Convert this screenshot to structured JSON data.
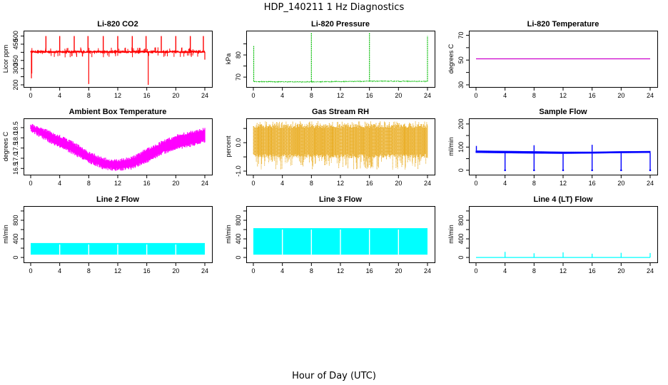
{
  "figure": {
    "title": "HDP_140211 1 Hz Diagnostics",
    "xlabel": "Hour of Day (UTC)"
  },
  "chart_data": [
    {
      "type": "line",
      "id": "co2",
      "title": "Li-820 CO2",
      "ylabel": "Licor ppm",
      "color": "#ff0000",
      "style": "noisy",
      "xlim": [
        0,
        24
      ],
      "xticks": [
        0,
        4,
        8,
        12,
        16,
        20,
        24
      ],
      "ylim": [
        200,
        520
      ],
      "yticks": [
        200,
        250,
        300,
        350,
        400,
        450,
        500
      ],
      "ytick_labels": [
        "200",
        "",
        "300",
        "350",
        "",
        "450",
        "500"
      ],
      "baseline": 403,
      "noise": 4,
      "dips": [
        {
          "x": 8.0,
          "y": 205
        },
        {
          "x": 16.2,
          "y": 200
        },
        {
          "x": 0.1,
          "y": 240
        },
        {
          "x": 0.15,
          "y": 270
        },
        {
          "x": 24.0,
          "y": 355
        }
      ],
      "peaks": [
        {
          "x": 2.1,
          "y": 500
        },
        {
          "x": 4.0,
          "y": 500
        },
        {
          "x": 6.0,
          "y": 500
        },
        {
          "x": 7.9,
          "y": 500
        },
        {
          "x": 10.0,
          "y": 500
        },
        {
          "x": 12.0,
          "y": 500
        },
        {
          "x": 14.0,
          "y": 500
        },
        {
          "x": 15.9,
          "y": 500
        },
        {
          "x": 18.0,
          "y": 500
        },
        {
          "x": 20.0,
          "y": 500
        },
        {
          "x": 22.0,
          "y": 500
        },
        {
          "x": 23.8,
          "y": 500
        }
      ],
      "spikes_y": [
        425,
        375
      ]
    },
    {
      "type": "line",
      "id": "pressure",
      "title": "Li-820 Pressure",
      "ylabel": "kPa",
      "color": "#00bb00",
      "style": "pressure",
      "xlim": [
        0,
        24
      ],
      "xticks": [
        0,
        4,
        8,
        12,
        16,
        20,
        24
      ],
      "ylim": [
        66.5,
        90
      ],
      "yticks": [
        70,
        75,
        80,
        85
      ],
      "ytick_labels": [
        "70",
        "",
        "80",
        ""
      ],
      "baseline": 68.0,
      "spikes": [
        {
          "x": 0.05,
          "y": 84
        },
        {
          "x": 8.0,
          "y": 90
        },
        {
          "x": 16.0,
          "y": 90
        },
        {
          "x": 24.0,
          "y": 88.5
        }
      ]
    },
    {
      "type": "line",
      "id": "temperature",
      "title": "Li-820 Temperature",
      "ylabel": "degrees C",
      "color": "#cc00cc",
      "style": "flat",
      "xlim": [
        0,
        24
      ],
      "xticks": [
        0,
        4,
        8,
        12,
        16,
        20,
        24
      ],
      "ylim": [
        30,
        72
      ],
      "yticks": [
        30,
        40,
        50,
        60,
        70
      ],
      "ytick_labels": [
        "30",
        "",
        "50",
        "",
        "70"
      ],
      "value": 51
    },
    {
      "type": "area",
      "id": "ambient",
      "title": "Ambient Box Temperature",
      "ylabel": "degrees C",
      "color": "#ff00ff",
      "style": "band",
      "xlim": [
        0,
        24
      ],
      "xticks": [
        0,
        4,
        8,
        12,
        16,
        20,
        24
      ],
      "ylim": [
        16.3,
        18.85
      ],
      "yticks": [
        16.5,
        17.0,
        17.5,
        18.0,
        18.5
      ],
      "ytick_labels": [
        "16.5",
        "17.0",
        "17.5",
        "18.0",
        "18.5"
      ],
      "upper": [
        [
          0,
          18.75
        ],
        [
          2,
          18.45
        ],
        [
          4,
          18.15
        ],
        [
          6,
          17.8
        ],
        [
          8,
          17.35
        ],
        [
          10,
          17.05
        ],
        [
          12,
          16.95
        ],
        [
          14,
          17.1
        ],
        [
          16,
          17.5
        ],
        [
          18,
          17.85
        ],
        [
          20,
          18.15
        ],
        [
          22,
          18.35
        ],
        [
          24,
          18.5
        ]
      ],
      "lower": [
        [
          0,
          18.3
        ],
        [
          2,
          17.85
        ],
        [
          4,
          17.5
        ],
        [
          6,
          17.15
        ],
        [
          8,
          16.75
        ],
        [
          10,
          16.45
        ],
        [
          12,
          16.35
        ],
        [
          14,
          16.45
        ],
        [
          16,
          16.75
        ],
        [
          18,
          17.15
        ],
        [
          20,
          17.4
        ],
        [
          22,
          17.55
        ],
        [
          24,
          17.75
        ]
      ]
    },
    {
      "type": "area",
      "id": "rh",
      "title": "Gas Stream RH",
      "ylabel": "percent",
      "color": "#e6a000",
      "style": "dense-band",
      "xlim": [
        0,
        24
      ],
      "xticks": [
        0,
        4,
        8,
        12,
        16,
        20,
        24
      ],
      "ylim": [
        -1.05,
        0.78
      ],
      "yticks": [
        -1.0,
        -0.5,
        0.0,
        0.5
      ],
      "ytick_labels": [
        "-1.0",
        "",
        "0.0",
        ""
      ],
      "band_top": 0.65,
      "band_bottom": -0.55,
      "low_extreme": -0.95,
      "high_extreme": 0.75
    },
    {
      "type": "line",
      "id": "sample",
      "title": "Sample Flow",
      "ylabel": "ml/min",
      "color": "#0000ff",
      "style": "flow",
      "xlim": [
        0,
        24
      ],
      "xticks": [
        0,
        4,
        8,
        12,
        16,
        20,
        24
      ],
      "ylim": [
        -10,
        215
      ],
      "yticks": [
        0,
        50,
        100,
        150,
        200
      ],
      "ytick_labels": [
        "0",
        "",
        "100",
        "",
        "200"
      ],
      "upper": [
        [
          0,
          85
        ],
        [
          8,
          82
        ],
        [
          12,
          80
        ],
        [
          16,
          80
        ],
        [
          20,
          82
        ],
        [
          24,
          83
        ]
      ],
      "lower": [
        [
          0,
          75
        ],
        [
          8,
          72
        ],
        [
          12,
          71
        ],
        [
          16,
          72
        ],
        [
          20,
          74
        ],
        [
          24,
          75
        ]
      ],
      "drops": [
        {
          "x": 4.0,
          "y": 0
        },
        {
          "x": 8.0,
          "y": 0
        },
        {
          "x": 12.0,
          "y": 0
        },
        {
          "x": 16.0,
          "y": 0
        },
        {
          "x": 20.0,
          "y": 0
        },
        {
          "x": 24.0,
          "y": 0
        }
      ],
      "peaks": [
        {
          "x": 8.0,
          "y": 108
        },
        {
          "x": 16.0,
          "y": 110
        },
        {
          "x": 0.05,
          "y": 105
        }
      ]
    },
    {
      "type": "area",
      "id": "line2",
      "title": "Line 2 Flow",
      "ylabel": "ml/min",
      "color": "#00ffff",
      "style": "block",
      "xlim": [
        0,
        24
      ],
      "xticks": [
        0,
        4,
        8,
        12,
        16,
        20,
        24
      ],
      "ylim": [
        -60,
        1060
      ],
      "yticks": [
        0,
        200,
        400,
        600,
        800,
        1000
      ],
      "ytick_labels": [
        "0",
        "",
        "400",
        "",
        "800",
        ""
      ],
      "top": 310,
      "bottom": 60,
      "gaps": [
        4.0,
        8.0,
        12.0,
        16.0,
        20.0
      ]
    },
    {
      "type": "area",
      "id": "line3",
      "title": "Line 3 Flow",
      "ylabel": "ml/min",
      "color": "#00ffff",
      "style": "block",
      "xlim": [
        0,
        24
      ],
      "xticks": [
        0,
        4,
        8,
        12,
        16,
        20,
        24
      ],
      "ylim": [
        -60,
        1060
      ],
      "yticks": [
        0,
        200,
        400,
        600,
        800,
        1000
      ],
      "ytick_labels": [
        "0",
        "",
        "400",
        "",
        "800",
        ""
      ],
      "top": 630,
      "bottom": 60,
      "gaps": [
        4.0,
        8.0,
        12.0,
        16.0,
        20.0
      ]
    },
    {
      "type": "line",
      "id": "line4",
      "title": "Line 4 (LT) Flow",
      "ylabel": "ml/min",
      "color": "#00ffff",
      "style": "flat-spikes",
      "xlim": [
        0,
        24
      ],
      "xticks": [
        0,
        4,
        8,
        12,
        16,
        20,
        24
      ],
      "ylim": [
        -60,
        1060
      ],
      "yticks": [
        0,
        200,
        400,
        600,
        800,
        1000
      ],
      "ytick_labels": [
        "0",
        "",
        "400",
        "",
        "800",
        ""
      ],
      "value": 0,
      "spikes": [
        {
          "x": 4.0,
          "y": 120
        },
        {
          "x": 8.0,
          "y": 90
        },
        {
          "x": 12.0,
          "y": 110
        },
        {
          "x": 16.0,
          "y": 80
        },
        {
          "x": 20.0,
          "y": 100
        },
        {
          "x": 24.0,
          "y": 95
        }
      ]
    }
  ]
}
